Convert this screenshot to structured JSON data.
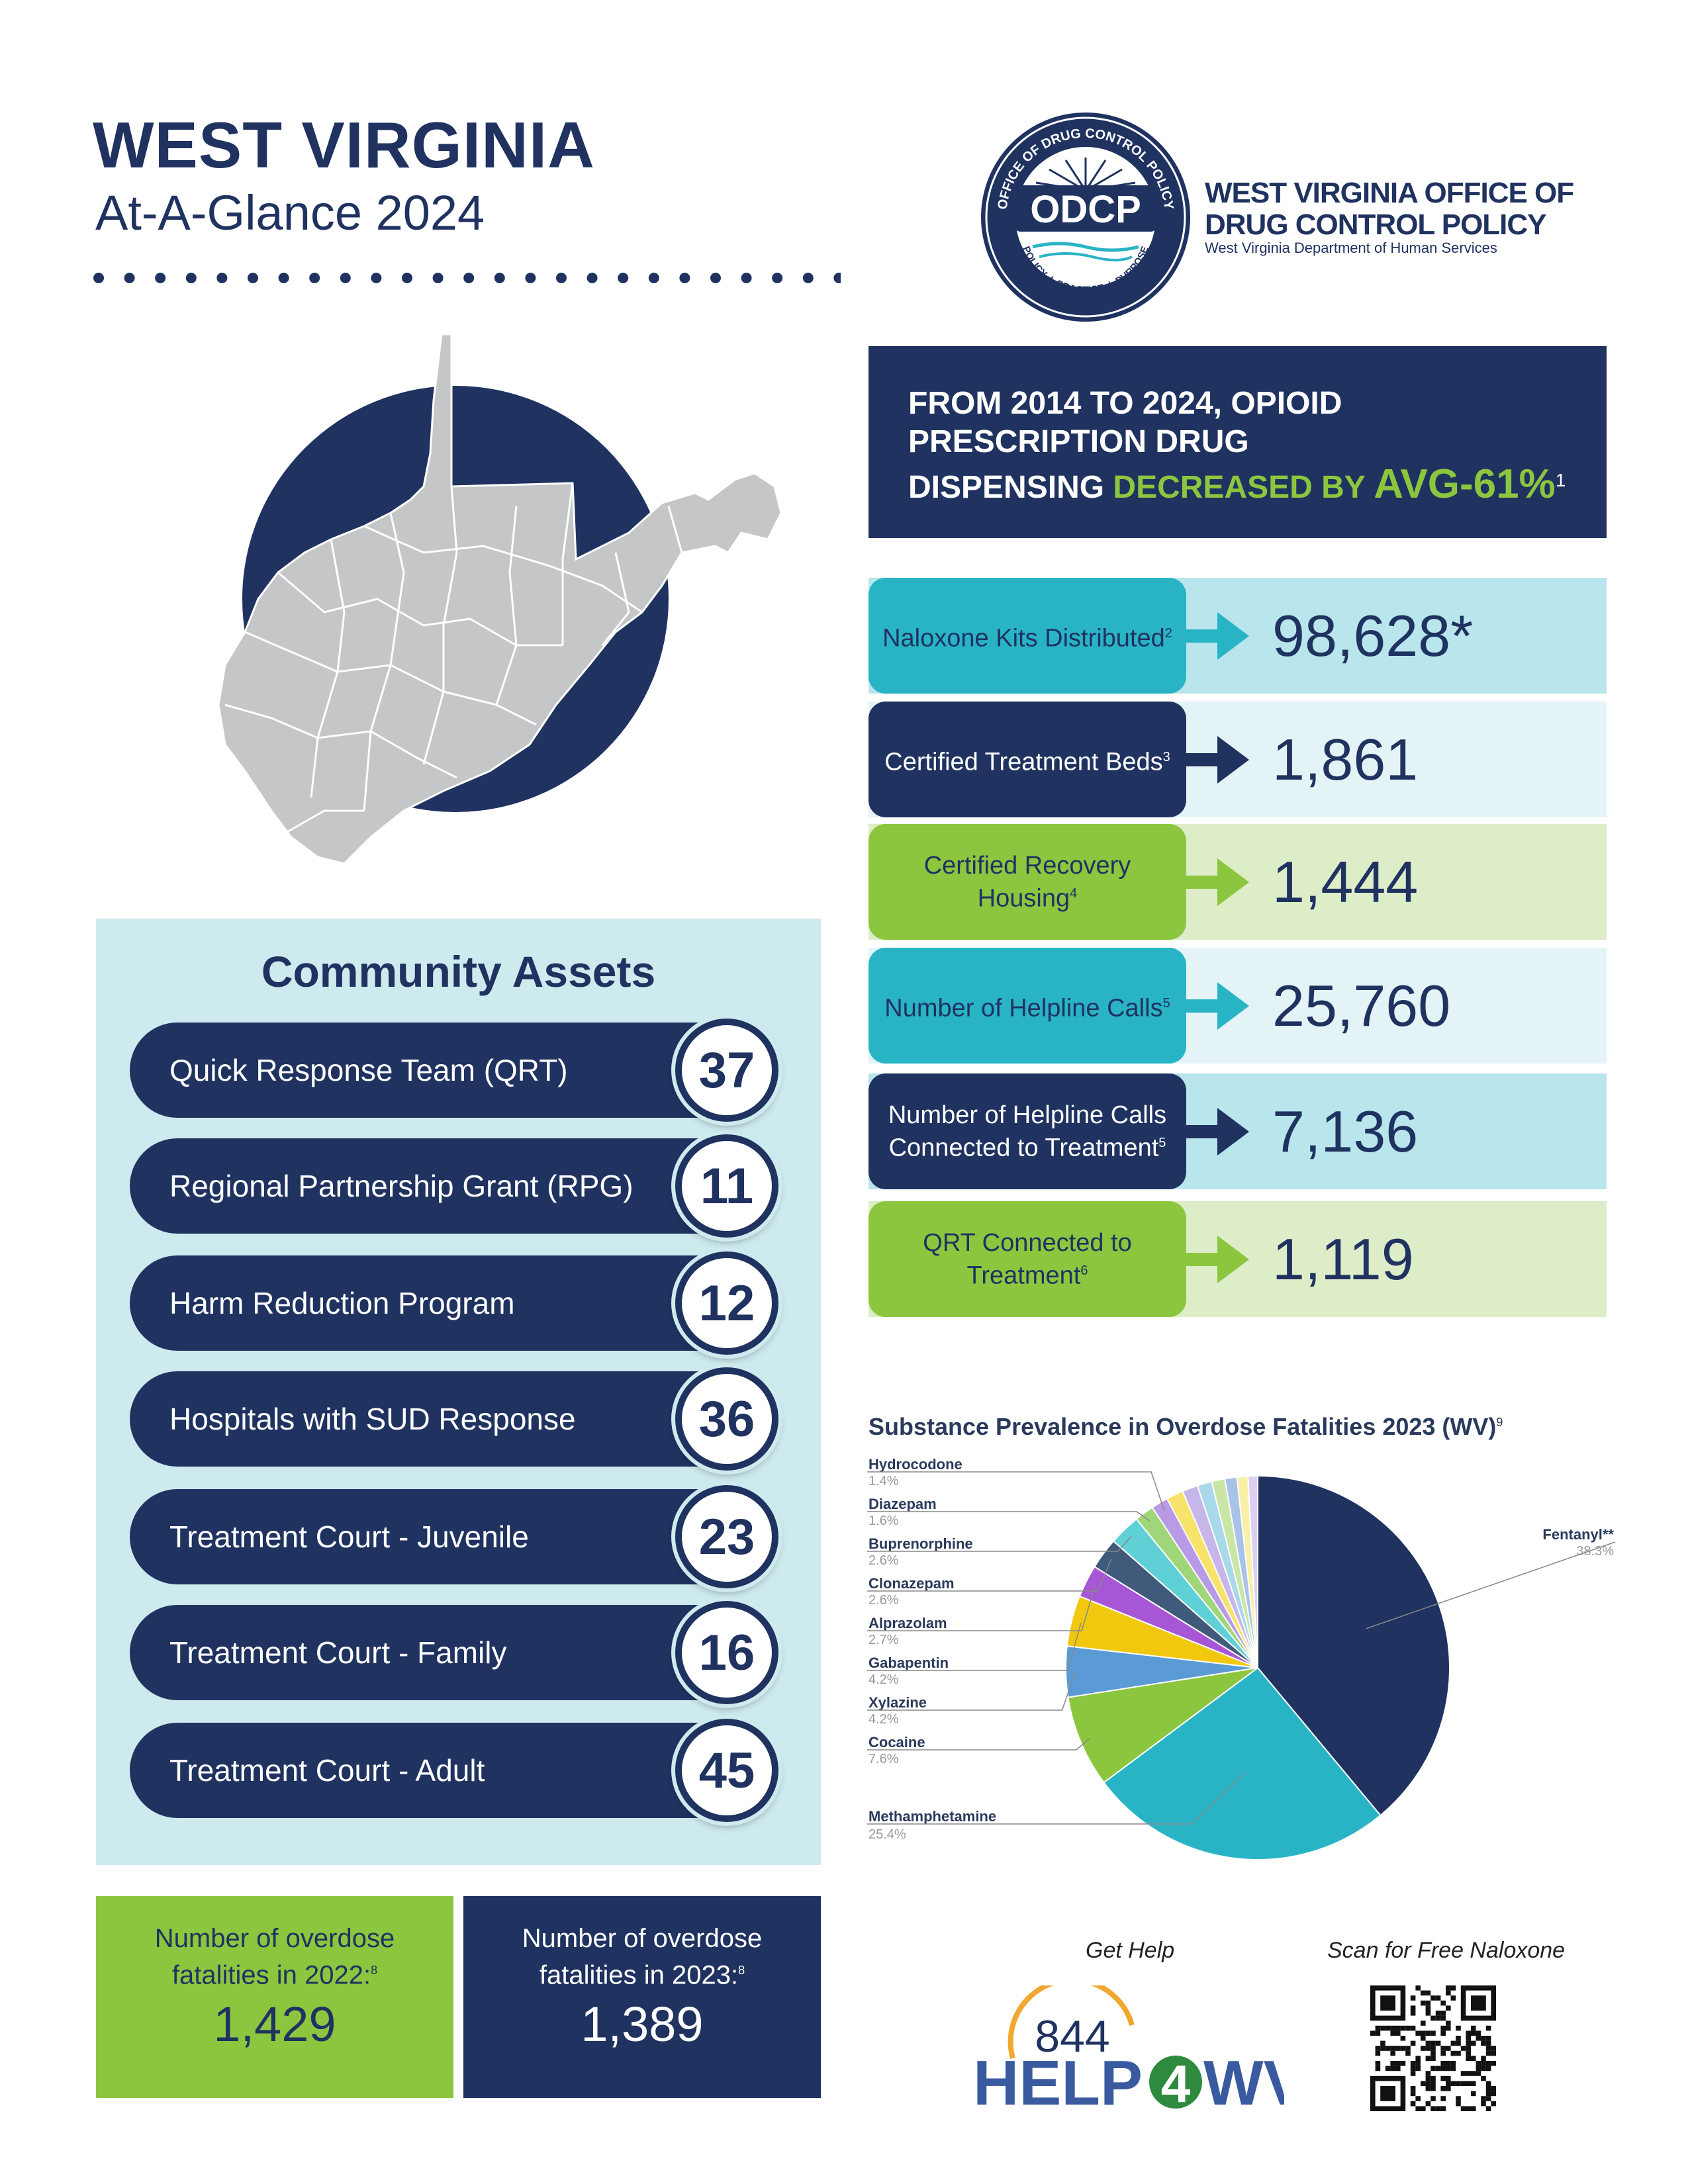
{
  "header": {
    "title": "WEST VIRGINIA",
    "subtitle": "At-A-Glance 2024"
  },
  "logo": {
    "acronym": "ODCP",
    "ring_top": "OFFICE OF DRUG CONTROL POLICY",
    "ring_bottom": "POLICY ★ PRACTICE ★ PURPOSE",
    "org_line1": "WEST VIRGINIA OFFICE OF",
    "org_line2": "DRUG CONTROL POLICY",
    "org_line3": "West Virginia Department of Human Services"
  },
  "headline": {
    "line1": "FROM 2014 TO 2024, OPIOID",
    "line2": "PRESCRIPTION DRUG",
    "line3_a": "DISPENSING ",
    "line3_green": "DECREASED BY ",
    "big": "AVG-61%",
    "footnote": "1"
  },
  "stats": [
    {
      "label": "Naloxone Kits Distributed",
      "footnote": "2",
      "value": "98,628*",
      "label_bg": "#29b4c6",
      "label_color": "#1f3260",
      "row_bg": "#b9e5ec",
      "arrow": "#29b4c6"
    },
    {
      "label": "Certified Treatment Beds",
      "footnote": "3",
      "value": "1,861",
      "label_bg": "#1f3260",
      "label_color": "#ffffff",
      "row_bg": "#e4f4f6",
      "arrow": "#1f3260"
    },
    {
      "label": "Certified Recovery Housing",
      "footnote": "4",
      "value": "1,444",
      "label_bg": "#8cc63f",
      "label_color": "#1f3260",
      "row_bg": "#dcedc8",
      "arrow": "#8cc63f"
    },
    {
      "label": "Number of Helpline Calls",
      "footnote": "5",
      "value": "25,760",
      "label_bg": "#29b4c6",
      "label_color": "#1f3260",
      "row_bg": "#e4f4f6",
      "arrow": "#29b4c6"
    },
    {
      "label": "Number of Helpline Calls Connected to Treatment",
      "footnote": "5",
      "value": "7,136",
      "label_bg": "#1f3260",
      "label_color": "#ffffff",
      "row_bg": "#b9e5ec",
      "arrow": "#1f3260"
    },
    {
      "label": "QRT Connected to Treatment",
      "footnote": "6",
      "value": "1,119",
      "label_bg": "#8cc63f",
      "label_color": "#1f3260",
      "row_bg": "#dcedc8",
      "arrow": "#8cc63f"
    }
  ],
  "assets": {
    "title": "Community Assets",
    "items": [
      {
        "label": "Quick Response Team (QRT)",
        "value": "37"
      },
      {
        "label": "Regional Partnership Grant (RPG)",
        "value": "11"
      },
      {
        "label": "Harm Reduction Program",
        "value": "12"
      },
      {
        "label": "Hospitals with SUD Response",
        "value": "36"
      },
      {
        "label": "Treatment Court - Juvenile",
        "value": "23"
      },
      {
        "label": "Treatment Court - Family",
        "value": "16"
      },
      {
        "label": "Treatment Court - Adult",
        "value": "45"
      }
    ]
  },
  "fatalities": {
    "y2022": {
      "label_line1": "Number of overdose",
      "label_line2": "fatalities in 2022:",
      "footnote": "8",
      "value": "1,429"
    },
    "y2023": {
      "label_line1": "Number of overdose",
      "label_line2": "fatalities in 2023:",
      "footnote": "8",
      "value": "1,389"
    }
  },
  "chart_data": {
    "type": "pie",
    "title": "Substance Prevalence in Overdose Fatalities 2023 (WV)",
    "title_footnote": "9",
    "slices": [
      {
        "name": "Fentanyl**",
        "value": 38.3,
        "label": "38.3%",
        "color": "#1f3260"
      },
      {
        "name": "Methamphetamine",
        "value": 25.4,
        "label": "25.4%",
        "color": "#29b4c6"
      },
      {
        "name": "Cocaine",
        "value": 7.6,
        "label": "7.6%",
        "color": "#8cc63f"
      },
      {
        "name": "Xylazine",
        "value": 4.2,
        "label": "4.2%",
        "color": "#5b9bd5"
      },
      {
        "name": "Gabapentin",
        "value": 4.2,
        "label": "4.2%",
        "color": "#f2c80f"
      },
      {
        "name": "Alprazolam",
        "value": 2.7,
        "label": "2.7%",
        "color": "#a757d6"
      },
      {
        "name": "Clonazepam",
        "value": 2.6,
        "label": "2.6%",
        "color": "#3f5a7a"
      },
      {
        "name": "Buprenorphine",
        "value": 2.6,
        "label": "2.6%",
        "color": "#5fd0d6"
      },
      {
        "name": "Diazepam",
        "value": 1.6,
        "label": "1.6%",
        "color": "#9fd67a"
      },
      {
        "name": "Hydrocodone",
        "value": 1.4,
        "label": "1.4%",
        "color": "#b89ae6"
      },
      {
        "name": "",
        "value": 1.4,
        "label": "",
        "color": "#f7e36a"
      },
      {
        "name": "",
        "value": 1.3,
        "label": "",
        "color": "#c7b6ea"
      },
      {
        "name": "",
        "value": 1.2,
        "label": "",
        "color": "#a8d8ea"
      },
      {
        "name": "",
        "value": 1.1,
        "label": "",
        "color": "#c9e6a7"
      },
      {
        "name": "",
        "value": 1.0,
        "label": "",
        "color": "#a9c2e8"
      },
      {
        "name": "",
        "value": 0.9,
        "label": "",
        "color": "#f9f0a8"
      },
      {
        "name": "",
        "value": 0.8,
        "label": "",
        "color": "#dcd0f2"
      }
    ]
  },
  "footer": {
    "get_help": "Get Help",
    "scan": "Scan for Free Naloxone",
    "help_number": "844",
    "help_text_a": "HELP",
    "help_text_4": "4",
    "help_text_b": "WV"
  },
  "colors": {
    "navy": "#1f3260",
    "teal": "#29b4c6",
    "green": "#8cc63f",
    "light_teal": "#cdebef"
  }
}
